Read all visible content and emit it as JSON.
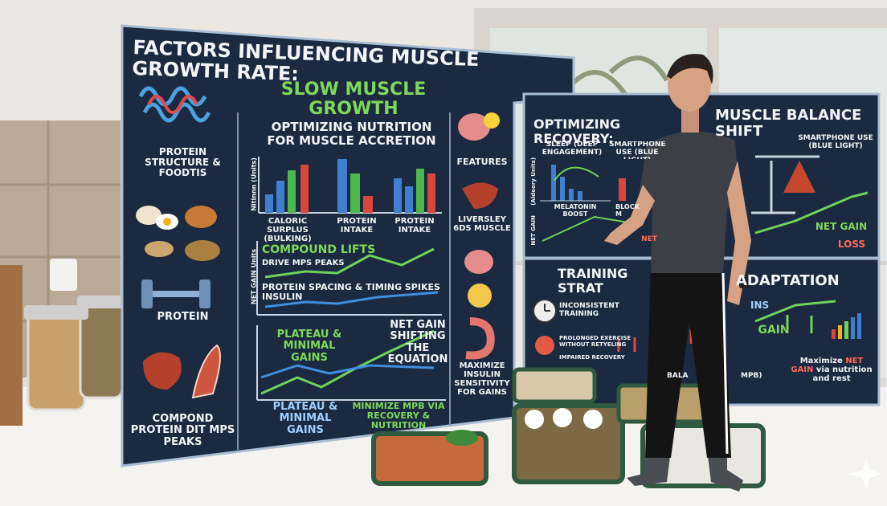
{
  "main_panel": {
    "title": "FACTORS INFLUENCING MUSCLE GROWTH RATE:",
    "subtitle": "SLOW MUSCLE GROWTH",
    "left_labels": [
      "PROTEIN STRUCTURE & FOODTIS",
      "PROTEIN",
      "COMPOND PROTEIN DIT MPS PEAKS"
    ],
    "nutrition_chart": {
      "title": "OPTIMIZING NUTRITION FOR MUSCLE ACCRETION",
      "y_label": "Nitinnn (Units)",
      "categories": [
        "CALORIC SURPLUS (BULKING)",
        "PROTEIN INTAKE",
        "PROTEIN INTAKE"
      ]
    },
    "mps_chart": {
      "y_label": "NET GAIN Units",
      "headline": "COMPOUND LIFTS",
      "note": "DRIVE MPS PEAKS",
      "caption": "PROTEIN SPACING & TIMING SPIKES INSULIN"
    },
    "gain_chart": {
      "left_note": "PLATEAU & MINIMAL GAINS",
      "right_note": "NET GAIN SHIFTING THE EQUATION",
      "bottom_left": "PLATEAU & MINIMAL GAINS",
      "bottom_right": "MINIMIZE MPB VIA RECOVERY & NUTRITION"
    },
    "right_labels": [
      "FEATURES",
      "LIVERSLEY 6DS MUSCLE",
      "MAXIMIZE INSULIN SENSITIVITY FOR GAINS"
    ]
  },
  "recovery_panel": {
    "title_left": "OPTIMIZING RECOVERY:",
    "title_right": "MUSCLE BALANCE SHIFT",
    "sleep": "SLEEP (DEEP ENGAGEMENT)",
    "smartphone_left": "SMARTPHONE USE (BLUE LIGHT)",
    "smartphone_right": "SMARTPHONE USE (BLUE LIGHT)",
    "y_label": "(Aldeory Units)",
    "melatonin": "MELATONIN BOOST",
    "block": "BLOCK M",
    "net_axis": "NET GAIN",
    "net_gain": "NET GAIN",
    "net_left": "NET",
    "loss": "LOSS"
  },
  "training_panel": {
    "title_left": "TRAINING STRAT",
    "title_right": "ADAPTATION",
    "inconsistent": "INCONSISTENT TRAINING",
    "prolonged": "PROLONGED EXERCISE WITHOUT RETYELING",
    "impaired": "IMPAIRED RECOVERY",
    "gain": "GAIN",
    "ins": "INS",
    "balance": "BALA",
    "mpb": "MPB)",
    "footer_pre": "Maximize",
    "footer_hl": "NET GAIN",
    "footer_post": "via nutrition and rest"
  }
}
